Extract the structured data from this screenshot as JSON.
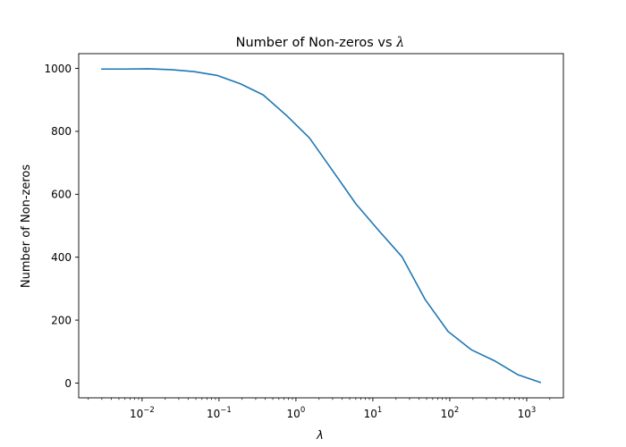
{
  "chart_data": {
    "type": "line",
    "title": "Number of Non-zeros vs λ",
    "title_text": "Number of Non-zeros vs ",
    "title_symbol": "λ",
    "xlabel": "λ",
    "ylabel": "Number of Non-zeros",
    "xscale": "log",
    "xlim": [
      0.0015,
      3000
    ],
    "ylim": [
      -47,
      1047
    ],
    "grid": false,
    "legend": "none",
    "x_ticks": [
      {
        "value": 0.01,
        "base": "10",
        "exp": "−2"
      },
      {
        "value": 0.1,
        "base": "10",
        "exp": "−1"
      },
      {
        "value": 1,
        "base": "10",
        "exp": "0"
      },
      {
        "value": 10,
        "base": "10",
        "exp": "1"
      },
      {
        "value": 100,
        "base": "10",
        "exp": "2"
      },
      {
        "value": 1000,
        "base": "10",
        "exp": "3"
      }
    ],
    "y_ticks": [
      {
        "value": 0,
        "label": "0"
      },
      {
        "value": 200,
        "label": "200"
      },
      {
        "value": 400,
        "label": "400"
      },
      {
        "value": 600,
        "label": "600"
      },
      {
        "value": 800,
        "label": "800"
      },
      {
        "value": 1000,
        "label": "1000"
      }
    ],
    "series": [
      {
        "color": "#1f77b4",
        "x": [
          0.003,
          0.006,
          0.012,
          0.024,
          0.047,
          0.094,
          0.19,
          0.375,
          0.75,
          1.5,
          3,
          6,
          12,
          24,
          48,
          95,
          190,
          380,
          760,
          1500
        ],
        "y": [
          998,
          998,
          999,
          996,
          990,
          978,
          951,
          916,
          851,
          779,
          675,
          570,
          484,
          401,
          265,
          164,
          106,
          71,
          27,
          2
        ]
      }
    ]
  }
}
